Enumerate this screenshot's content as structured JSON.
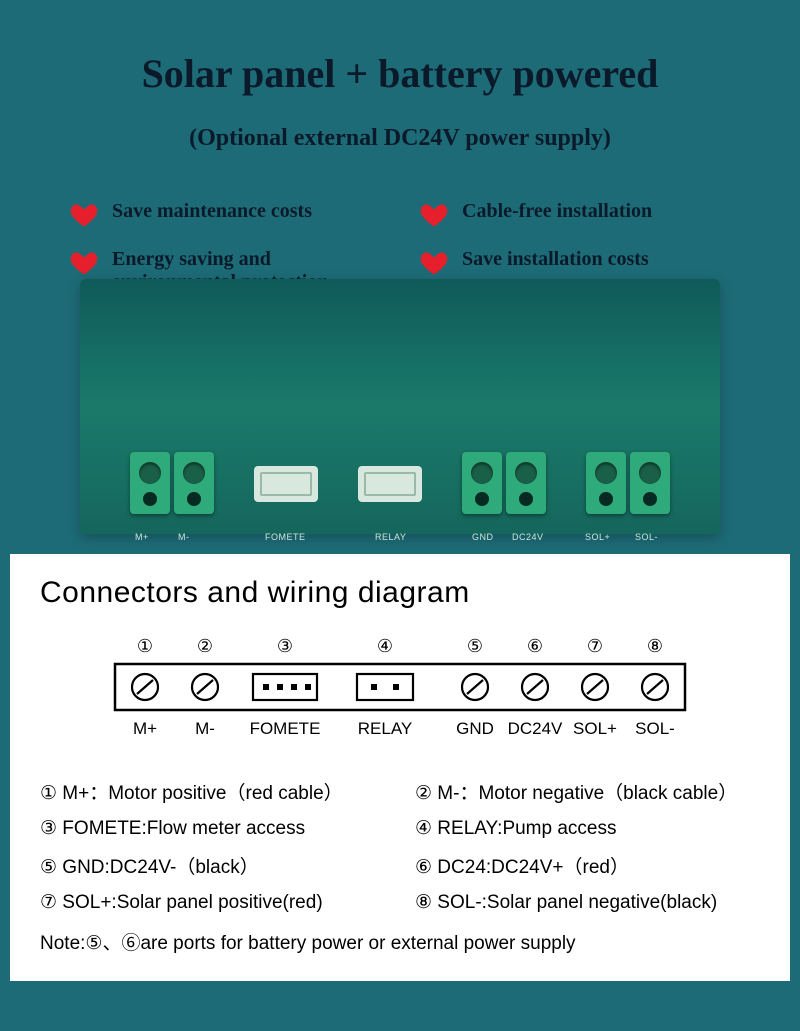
{
  "header": {
    "title": "Solar panel + battery powered",
    "subtitle": "(Optional external DC24V power supply)"
  },
  "benefits": [
    "Save maintenance costs",
    "Cable-free installation",
    "Energy saving and environmental protection",
    "Save installation costs"
  ],
  "heart_color": "#e5202c",
  "pcb": {
    "board_color": "#1a7a6a",
    "terminal_color": "#2faa7a",
    "labels": [
      "M+",
      "M-",
      "FOMETE",
      "RELAY",
      "GND",
      "DC24V",
      "SOL+",
      "SOL-"
    ]
  },
  "diagram": {
    "title": "Connectors and wiring diagram",
    "ports": [
      {
        "num": "①",
        "label": "M+",
        "type": "screw"
      },
      {
        "num": "②",
        "label": "M-",
        "type": "screw"
      },
      {
        "num": "③",
        "label": "FOMETE",
        "type": "pin4"
      },
      {
        "num": "④",
        "label": "RELAY",
        "type": "pin2"
      },
      {
        "num": "⑤",
        "label": "GND",
        "type": "screw"
      },
      {
        "num": "⑥",
        "label": "DC24V",
        "type": "screw"
      },
      {
        "num": "⑦",
        "label": "SOL+",
        "type": "screw"
      },
      {
        "num": "⑧",
        "label": "SOL-",
        "type": "screw"
      }
    ],
    "port_x": [
      45,
      105,
      185,
      285,
      375,
      435,
      495,
      555
    ],
    "legend": [
      "M+：Motor positive（red cable）",
      "M-：Motor negative（black cable）",
      "FOMETE:Flow meter access",
      "RELAY:Pump access",
      "GND:DC24V-（black）",
      "DC24:DC24V+（red）",
      "SOL+:Solar panel positive(red)",
      "SOL-:Solar panel negative(black)"
    ],
    "note_prefix": "Note:",
    "note_suffix": "are ports for battery power or external power supply",
    "note_ports": [
      "⑤",
      "⑥"
    ]
  },
  "colors": {
    "page_bg": "#1d6b76",
    "panel_bg": "#ffffff",
    "title_color": "#0a1a2a",
    "text_black": "#000000"
  }
}
